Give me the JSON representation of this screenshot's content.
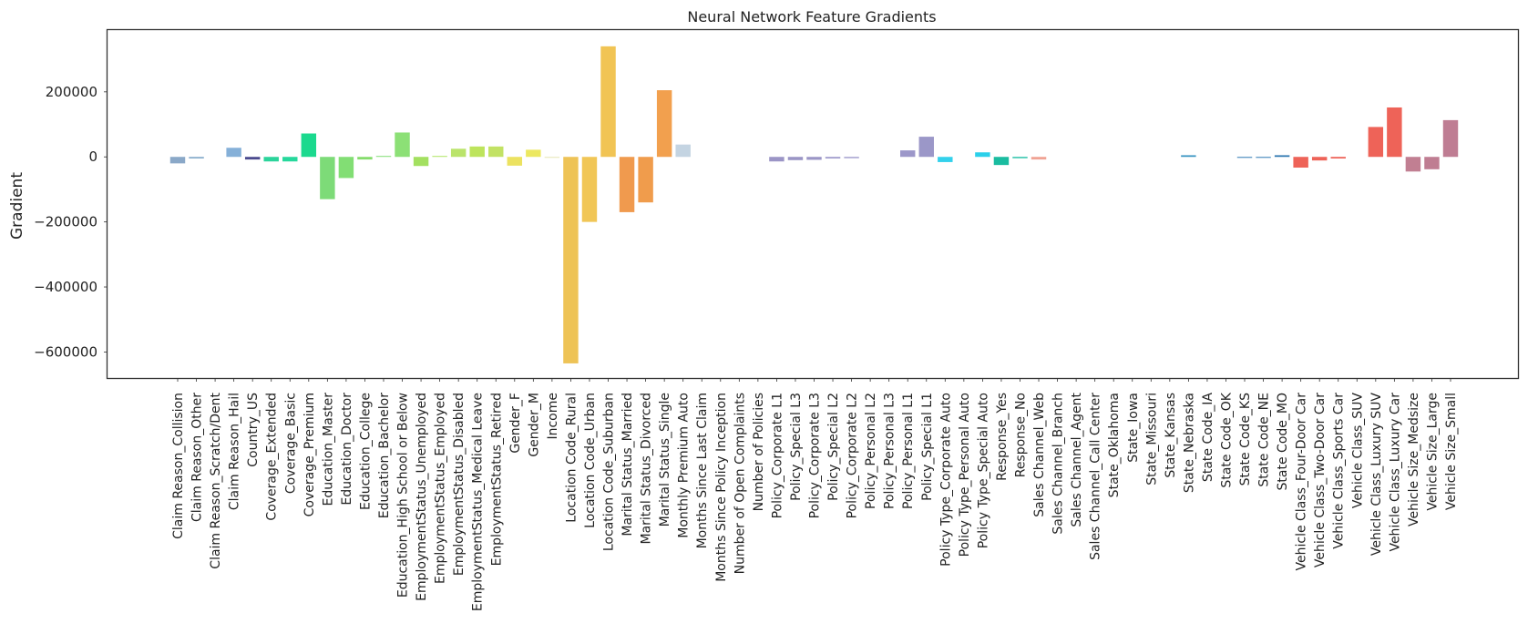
{
  "chart_data": {
    "type": "bar",
    "title": "Neural Network Feature Gradients",
    "xlabel": "",
    "ylabel": "Gradient",
    "ylim": [
      -680000,
      390000
    ],
    "yticks": [
      200000,
      0,
      -200000,
      -400000,
      -600000
    ],
    "ytick_labels": [
      "200000",
      "0",
      "−200000",
      "−400000",
      "−600000"
    ],
    "grid": false,
    "legend": "none",
    "categories": [
      "Claim Reason_Collision",
      "Claim Reason_Other",
      "Claim Reason_Scratch/Dent",
      "Claim Reason_Hail",
      "Country_US",
      "Coverage_Extended",
      "Coverage_Basic",
      "Coverage_Premium",
      "Education_Master",
      "Education_Doctor",
      "Education_College",
      "Education_Bachelor",
      "Education_High School or Below",
      "EmploymentStatus_Unemployed",
      "EmploymentStatus_Employed",
      "EmploymentStatus_Disabled",
      "EmploymentStatus_Medical Leave",
      "EmploymentStatus_Retired",
      "Gender_F",
      "Gender_M",
      "Income",
      "Location Code_Rural",
      "Location Code_Urban",
      "Location Code_Suburban",
      "Marital Status_Married",
      "Marital Status_Divorced",
      "Marital Status_Single",
      "Monthly Premium Auto",
      "Months Since Last Claim",
      "Months Since Policy Inception",
      "Number of Open Complaints",
      "Number of Policies",
      "Policy_Corporate L1",
      "Policy_Special L3",
      "Policy_Corporate L3",
      "Policy_Special L2",
      "Policy_Corporate L2",
      "Policy_Personal L2",
      "Policy_Personal L3",
      "Policy_Personal L1",
      "Policy_Special L1",
      "Policy Type_Corporate Auto",
      "Policy Type_Personal Auto",
      "Policy Type_Special Auto",
      "Response_Yes",
      "Response_No",
      "Sales Channel_Web",
      "Sales Channel_Branch",
      "Sales Channel_Agent",
      "Sales Channel_Call Center",
      "State_Oklahoma",
      "State_Iowa",
      "State_Missouri",
      "State_Kansas",
      "State_Nebraska",
      "State Code_IA",
      "State Code_OK",
      "State Code_KS",
      "State Code_NE",
      "State Code_MO",
      "Vehicle Class_Four-Door Car",
      "Vehicle Class_Two-Door Car",
      "Vehicle Class_Sports Car",
      "Vehicle Class_SUV",
      "Vehicle Class_Luxury SUV",
      "Vehicle Class_Luxury Car",
      "Vehicle Size_Medsize",
      "Vehicle Size_Large",
      "Vehicle Size_Small"
    ],
    "values": [
      -20000,
      -5000,
      0,
      28000,
      -8000,
      -14000,
      -14000,
      72000,
      -130000,
      -65000,
      -8000,
      3000,
      75000,
      -28000,
      3000,
      25000,
      32000,
      32000,
      -27000,
      22000,
      -3000,
      -635000,
      -200000,
      340000,
      -170000,
      -140000,
      205000,
      38000,
      0,
      0,
      0,
      0,
      -14000,
      -10000,
      -9000,
      -5000,
      -4000,
      0,
      0,
      20000,
      62000,
      -16000,
      0,
      14000,
      -25000,
      -4000,
      -8000,
      0,
      0,
      0,
      0,
      0,
      0,
      0,
      5000,
      0,
      0,
      -3000,
      -3000,
      5000,
      -33000,
      -11000,
      -5000,
      0,
      92000,
      152000,
      -45000,
      -38000,
      113000
    ],
    "colors": [
      "#8aa8c8",
      "#8aaecc",
      "#85b0d8",
      "#85b0d8",
      "#4b4a8e",
      "#2bd49b",
      "#26d89c",
      "#1bd98e",
      "#7ddb78",
      "#82de74",
      "#85dc6c",
      "#8ae07e",
      "#8ce076",
      "#a3e060",
      "#b5e66c",
      "#bae46a",
      "#bde45c",
      "#c2e264",
      "#ece260",
      "#ece860",
      "#e8e8b8",
      "#eec356",
      "#f1c656",
      "#f1c454",
      "#f09a4e",
      "#f09c4c",
      "#f2a04e",
      "#c4d4e2",
      "#cfd8e4",
      "#d0d8e4",
      "#d0d8e4",
      "#d0d8e4",
      "#9b95c6",
      "#9a95c5",
      "#9b96c6",
      "#a09ccc",
      "#a09ccc",
      "#a19ccd",
      "#a19ccd",
      "#9c97c9",
      "#9b97c8",
      "#33d1ec",
      "#33d1ec",
      "#2bd0ea",
      "#1abca0",
      "#22c0a6",
      "#f0a394",
      "#f0a394",
      "#f0a394",
      "#f0a394",
      "#3a95c2",
      "#3a95c2",
      "#3a95c2",
      "#3a95c2",
      "#3a95c2",
      "#3a82b8",
      "#3a82b8",
      "#3a82b8",
      "#3a82b8",
      "#2e78b0",
      "#ee6358",
      "#ee6358",
      "#ee6358",
      "#ee6358",
      "#ee6358",
      "#ee6358",
      "#c17f92",
      "#bf7d92",
      "#bf7d93"
    ]
  }
}
